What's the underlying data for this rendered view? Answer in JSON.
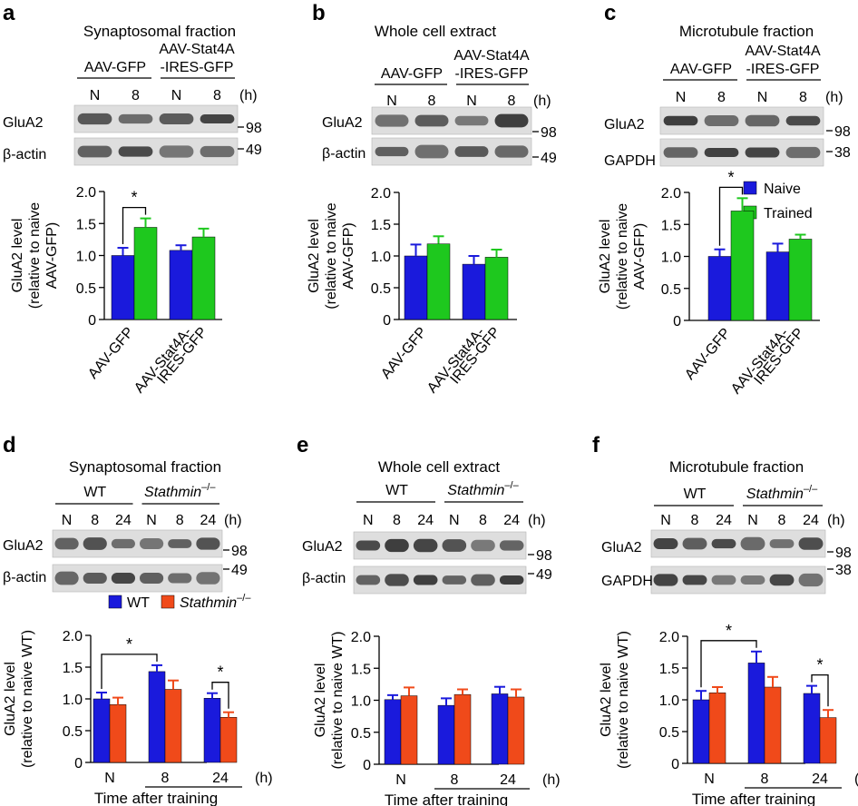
{
  "colors": {
    "naive": "#1a1adc",
    "trained": "#1ec81e",
    "wt": "#1a1adc",
    "stathmin": "#f04a1a",
    "axis": "#000000",
    "band": "#2a2a2a",
    "blot_bg": "#dedede"
  },
  "common": {
    "hours_unit": "(h)",
    "mw": {
      "m98": "98",
      "m49": "49",
      "m38": "38"
    },
    "ab_group": "AAV-GFP",
    "ab_group2_line1": "AAV-Stat4A",
    "ab_group2_line2": "-IRES-GFP",
    "def_group1": "WT",
    "def_group2": "Stathmin",
    "def_group2_sup": "–/–",
    "xtitle": "Time after training",
    "sig": "*"
  },
  "panels": [
    {
      "letter": "a",
      "title": "Synaptosomal fraction",
      "blot_rows": [
        "GluA2",
        "β-actin"
      ],
      "lane_labels": [
        "N",
        "8",
        "N",
        "8"
      ],
      "chart_data": {
        "type": "bar",
        "ylabel_lines": [
          "GluA2 level",
          "(relative to naive",
          "AAV-GFP)"
        ],
        "ylim": [
          0,
          2.0
        ],
        "yticks": [
          "0",
          "0.5",
          "1.0",
          "1.5",
          "2.0"
        ],
        "categories": [
          "AAV-GFP",
          "AAV-Stat4A-IRES-GFP"
        ],
        "category_label_lines": [
          [
            "AAV-GFP"
          ],
          [
            "AAV-Stat4A-",
            "IRES-GFP"
          ]
        ],
        "series": [
          {
            "name": "Naive",
            "values": [
              1.0,
              1.08
            ],
            "errors": [
              0.12,
              0.08
            ]
          },
          {
            "name": "Trained",
            "values": [
              1.44,
              1.29
            ],
            "errors": [
              0.14,
              0.13
            ]
          }
        ],
        "significance": [
          {
            "from": "0:0",
            "to": "0:1",
            "label": "*"
          }
        ]
      }
    },
    {
      "letter": "b",
      "title": "Whole cell extract",
      "blot_rows": [
        "GluA2",
        "β-actin"
      ],
      "lane_labels": [
        "N",
        "8",
        "N",
        "8"
      ],
      "chart_data": {
        "type": "bar",
        "ylabel_lines": [
          "GluA2 level",
          "(relative to naive",
          "AAV-GFP)"
        ],
        "ylim": [
          0,
          2.0
        ],
        "yticks": [
          "0",
          "0.5",
          "1.0",
          "1.5",
          "2.0"
        ],
        "categories": [
          "AAV-GFP",
          "AAV-Stat4A-IRES-GFP"
        ],
        "category_label_lines": [
          [
            "AAV-GFP"
          ],
          [
            "AAV-Stat4A-",
            "IRES-GFP"
          ]
        ],
        "series": [
          {
            "name": "Naive",
            "values": [
              1.0,
              0.87
            ],
            "errors": [
              0.18,
              0.13
            ]
          },
          {
            "name": "Trained",
            "values": [
              1.19,
              0.98
            ],
            "errors": [
              0.12,
              0.12
            ]
          }
        ],
        "significance": []
      }
    },
    {
      "letter": "c",
      "title": "Microtubule fraction",
      "blot_rows": [
        "GluA2",
        "GAPDH"
      ],
      "lane_labels": [
        "N",
        "8",
        "N",
        "8"
      ],
      "chart_data": {
        "type": "bar",
        "ylabel_lines": [
          "GluA2 level",
          "(relative to naive",
          "AAV-GFP)"
        ],
        "ylim": [
          0,
          2.0
        ],
        "yticks": [
          "0",
          "0.5",
          "1.0",
          "1.5",
          "2.0"
        ],
        "categories": [
          "AAV-GFP",
          "AAV-Stat4A-IRES-GFP"
        ],
        "category_label_lines": [
          [
            "AAV-GFP"
          ],
          [
            "AAV-Stat4A-",
            "IRES-GFP"
          ]
        ],
        "series": [
          {
            "name": "Naive",
            "values": [
              1.0,
              1.07
            ],
            "errors": [
              0.11,
              0.13
            ]
          },
          {
            "name": "Trained",
            "values": [
              1.71,
              1.27
            ],
            "errors": [
              0.2,
              0.07
            ]
          }
        ],
        "legend": [
          "Naive",
          "Trained"
        ],
        "significance": [
          {
            "from": "0:0",
            "to": "0:1",
            "label": "*"
          }
        ]
      }
    },
    {
      "letter": "d",
      "title": "Synaptosomal fraction",
      "blot_rows": [
        "GluA2",
        "β-actin"
      ],
      "lane_labels": [
        "N",
        "8",
        "24",
        "N",
        "8",
        "24"
      ],
      "chart_data": {
        "type": "bar",
        "ylabel_lines": [
          "GluA2 level",
          "(relative to naive WT)"
        ],
        "ylim": [
          0,
          2.0
        ],
        "yticks": [
          "0",
          "0.5",
          "1.0",
          "1.5",
          "2.0"
        ],
        "categories": [
          "N",
          "8",
          "24"
        ],
        "x_unit": "(h)",
        "xlabel": "Time after training",
        "series": [
          {
            "name": "WT",
            "values": [
              1.0,
              1.43,
              1.01
            ],
            "errors": [
              0.1,
              0.1,
              0.08
            ]
          },
          {
            "name": "Stathmin–/–",
            "values": [
              0.91,
              1.15,
              0.71
            ],
            "errors": [
              0.11,
              0.14,
              0.08
            ]
          }
        ],
        "legend": [
          "WT",
          "Stathmin–/–"
        ],
        "significance": [
          {
            "from": "0:0",
            "to": "1:0",
            "label": "*"
          },
          {
            "from": "2:0",
            "to": "2:1",
            "label": "*"
          }
        ]
      }
    },
    {
      "letter": "e",
      "title": "Whole cell extract",
      "blot_rows": [
        "GluA2",
        "β-actin"
      ],
      "lane_labels": [
        "N",
        "8",
        "24",
        "N",
        "8",
        "24"
      ],
      "chart_data": {
        "type": "bar",
        "ylabel_lines": [
          "GluA2 level",
          "(relative to naive WT)"
        ],
        "ylim": [
          0,
          2.0
        ],
        "yticks": [
          "0",
          "0.5",
          "1.0",
          "1.5",
          "2.0"
        ],
        "categories": [
          "N",
          "8",
          "24"
        ],
        "x_unit": "(h)",
        "xlabel": "Time after training",
        "series": [
          {
            "name": "WT",
            "values": [
              1.01,
              0.92,
              1.1
            ],
            "errors": [
              0.07,
              0.11,
              0.11
            ]
          },
          {
            "name": "Stathmin–/–",
            "values": [
              1.07,
              1.09,
              1.05
            ],
            "errors": [
              0.13,
              0.08,
              0.12
            ]
          }
        ],
        "significance": []
      }
    },
    {
      "letter": "f",
      "title": "Microtubule fraction",
      "blot_rows": [
        "GluA2",
        "GAPDH"
      ],
      "lane_labels": [
        "N",
        "8",
        "24",
        "N",
        "8",
        "24"
      ],
      "chart_data": {
        "type": "bar",
        "ylabel_lines": [
          "GluA2 level",
          "(relative to naive WT)"
        ],
        "ylim": [
          0,
          2.0
        ],
        "yticks": [
          "0",
          "0.5",
          "1.0",
          "1.5",
          "2.0"
        ],
        "categories": [
          "N",
          "8",
          "24"
        ],
        "x_unit": "(h)",
        "xlabel": "Time after training",
        "series": [
          {
            "name": "WT",
            "values": [
              1.0,
              1.58,
              1.1
            ],
            "errors": [
              0.14,
              0.18,
              0.12
            ]
          },
          {
            "name": "Stathmin–/–",
            "values": [
              1.11,
              1.2,
              0.72
            ],
            "errors": [
              0.09,
              0.16,
              0.12
            ]
          }
        ],
        "significance": [
          {
            "from": "0:0",
            "to": "1:0",
            "label": "*"
          },
          {
            "from": "2:0",
            "to": "2:1",
            "label": "*"
          }
        ]
      }
    }
  ]
}
